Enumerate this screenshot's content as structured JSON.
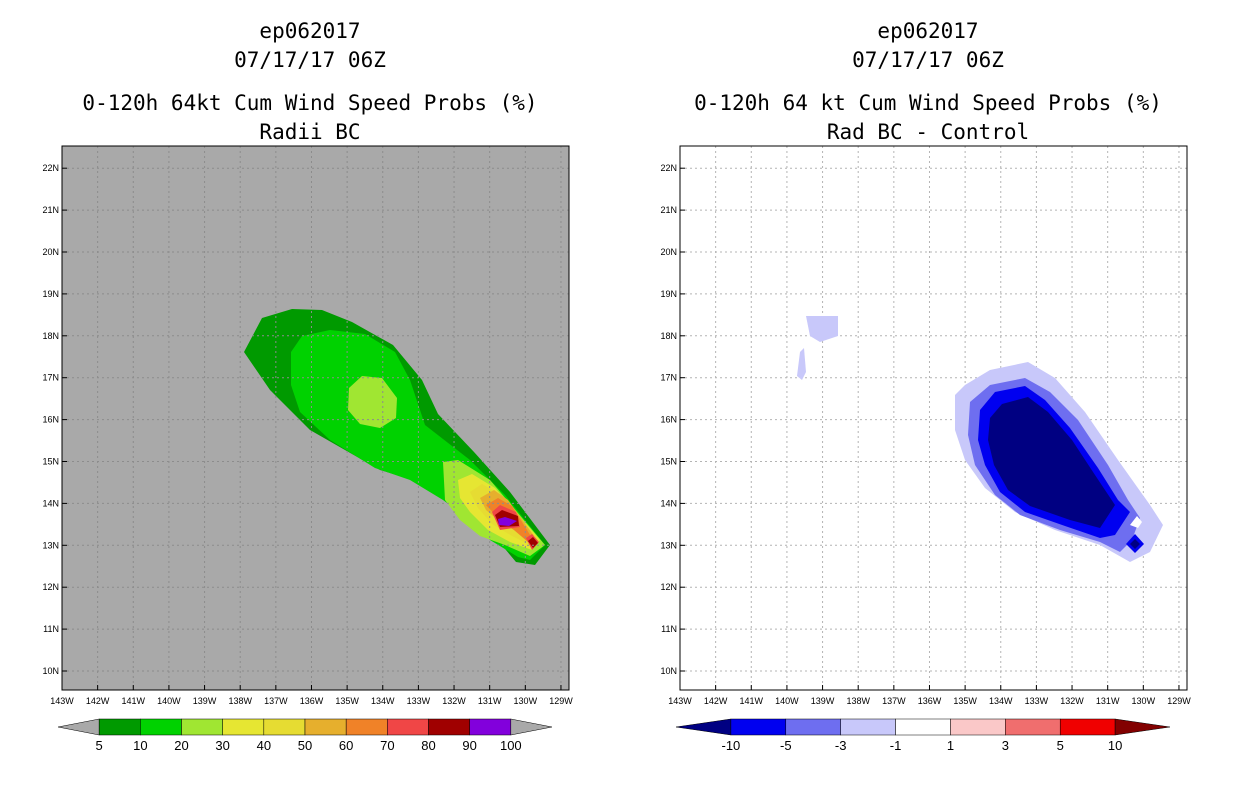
{
  "chart_data": [
    {
      "type": "contour",
      "storm_id": "ep062017",
      "datetime": "07/17/17 06Z",
      "title": "0-120h 64kt Cum Wind Speed Probs (%)",
      "subtitle": "Radii BC",
      "x_ticks": [
        "143W",
        "142W",
        "141W",
        "140W",
        "139W",
        "138W",
        "137W",
        "136W",
        "135W",
        "134W",
        "133W",
        "132W",
        "131W",
        "130W",
        "129W"
      ],
      "y_ticks": [
        "10N",
        "11N",
        "12N",
        "13N",
        "14N",
        "15N",
        "16N",
        "17N",
        "18N",
        "19N",
        "20N",
        "21N",
        "22N"
      ],
      "colorbar_labels": [
        "5",
        "10",
        "20",
        "30",
        "40",
        "50",
        "60",
        "70",
        "80",
        "90",
        "100"
      ],
      "colorbar_colors": [
        "#a9a9a9",
        "#009a00",
        "#00d200",
        "#a0e632",
        "#e6e632",
        "#e6dc32",
        "#e6af2d",
        "#f08228",
        "#f04646",
        "#a00000",
        "#8200dc",
        "#a9a9a9"
      ],
      "background": "#a9a9a9"
    },
    {
      "type": "contour",
      "storm_id": "ep062017",
      "datetime": "07/17/17 06Z",
      "title": "0-120h 64 kt Cum Wind Speed Probs (%)",
      "subtitle": "Rad BC - Control",
      "x_ticks": [
        "143W",
        "142W",
        "141W",
        "140W",
        "139W",
        "138W",
        "137W",
        "136W",
        "135W",
        "134W",
        "133W",
        "132W",
        "131W",
        "130W",
        "129W"
      ],
      "y_ticks": [
        "10N",
        "11N",
        "12N",
        "13N",
        "14N",
        "15N",
        "16N",
        "17N",
        "18N",
        "19N",
        "20N",
        "21N",
        "22N"
      ],
      "colorbar_labels": [
        "-10",
        "-5",
        "-3",
        "-1",
        "1",
        "3",
        "5",
        "10"
      ],
      "colorbar_colors": [
        "#000082",
        "#0000f0",
        "#6e6ef0",
        "#c8c8fa",
        "#ffffff",
        "#fac8c8",
        "#f06e6e",
        "#f00000",
        "#820000"
      ],
      "background": "#ffffff"
    }
  ]
}
